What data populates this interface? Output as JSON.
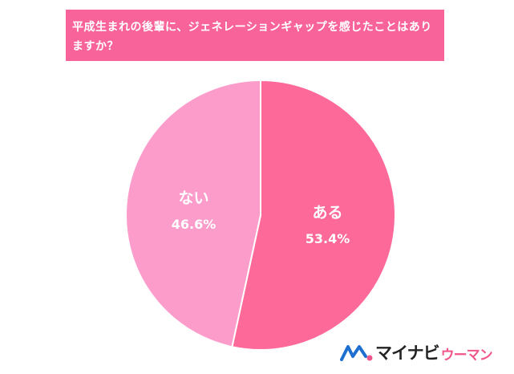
{
  "chart_data": {
    "type": "pie",
    "title": "平成生まれの後輩に、ジェネレーションギャップを感じたことはありますか？",
    "slices": [
      {
        "label": "ある",
        "value": 53.4,
        "value_label": "53.4%",
        "color": "#fd6a9a"
      },
      {
        "label": "ない",
        "value": 46.6,
        "value_label": "46.6%",
        "color": "#fb9ccb"
      }
    ],
    "start": "12 o'clock",
    "direction": "clockwise",
    "legend": "none"
  },
  "logo": {
    "main": "マイナビ",
    "sub": "ウーマン"
  },
  "colors": {
    "banner": "#f8639a",
    "logo_accent": "#f0568c",
    "logo_blue": "#1f6fd1"
  }
}
